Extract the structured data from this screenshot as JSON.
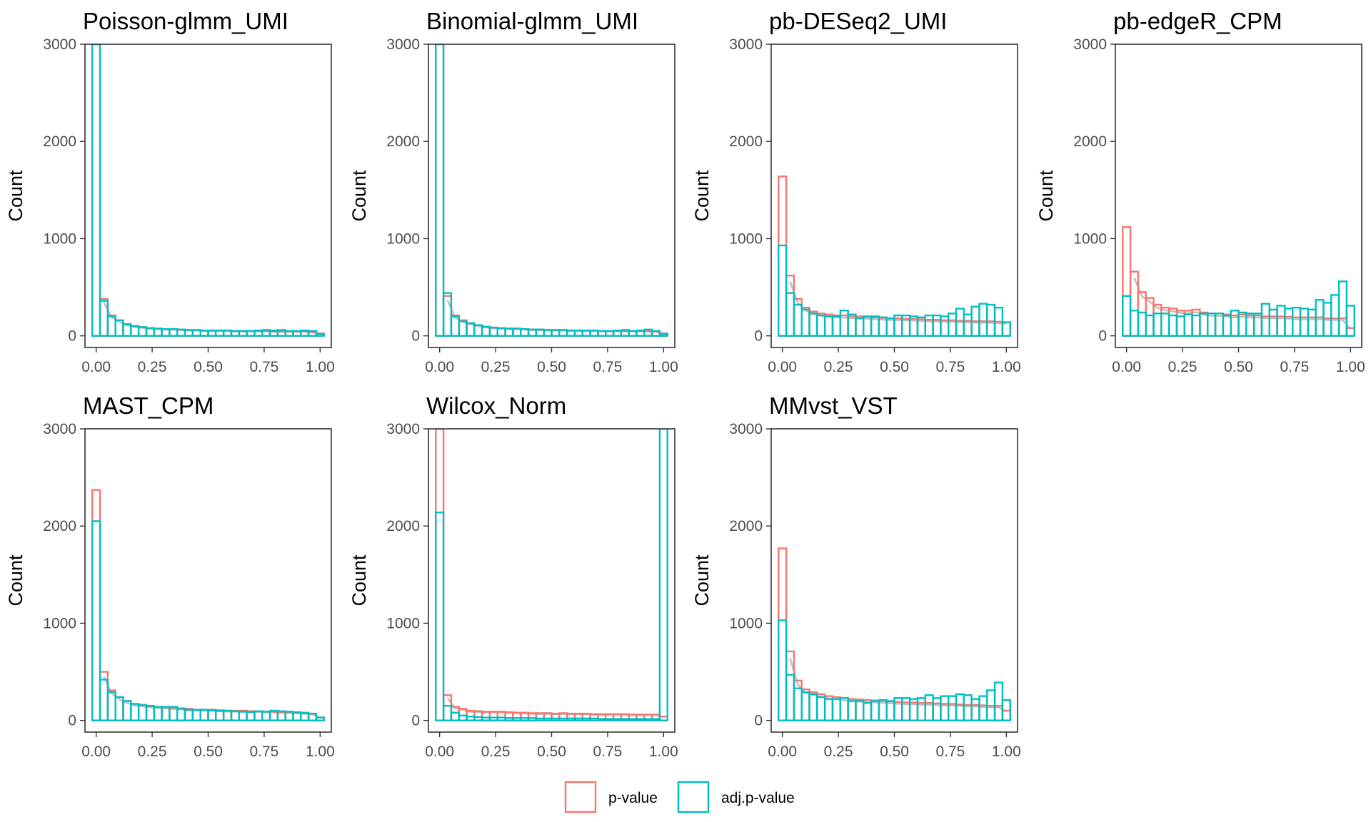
{
  "chart_data": {
    "type": "bar",
    "subtype": "histogram-facets",
    "x_ticks": [
      0,
      0.25,
      0.5,
      0.75,
      1
    ],
    "x_tick_labels": [
      "0.00",
      "0.25",
      "0.50",
      "0.75",
      "1.00"
    ],
    "xlim": [
      -0.05,
      1.05
    ],
    "y_ticks": [
      0,
      1000,
      2000,
      3000
    ],
    "y_tick_labels": [
      "0",
      "1000",
      "2000",
      "3000"
    ],
    "ylim": [
      -120,
      3000
    ],
    "ylabel": "Count",
    "bin_width": 0.0345,
    "bin_centers": [
      0,
      0.0345,
      0.069,
      0.1034,
      0.1379,
      0.1724,
      0.2069,
      0.2414,
      0.2759,
      0.3103,
      0.3448,
      0.3793,
      0.4138,
      0.4483,
      0.4828,
      0.5172,
      0.5517,
      0.5862,
      0.6207,
      0.6552,
      0.6897,
      0.7241,
      0.7586,
      0.7931,
      0.8276,
      0.8621,
      0.8966,
      0.931,
      0.9655,
      1
    ],
    "colors": {
      "p": "#F8766D",
      "adj": "#00BFC4",
      "reference": "#BDBDBD"
    },
    "legend": {
      "position": "bottom",
      "entries": [
        {
          "key": "p",
          "label": "p-value"
        },
        {
          "key": "adj",
          "label": "adj.p-value"
        }
      ]
    },
    "panels": [
      {
        "title": "Poisson-glmm_UMI",
        "p": [
          3400,
          380,
          210,
          160,
          120,
          100,
          90,
          80,
          75,
          70,
          70,
          65,
          60,
          60,
          55,
          55,
          55,
          55,
          50,
          50,
          50,
          50,
          50,
          45,
          45,
          45,
          45,
          45,
          40,
          25
        ],
        "adj": [
          3500,
          360,
          200,
          160,
          120,
          100,
          90,
          80,
          75,
          70,
          70,
          65,
          60,
          60,
          55,
          55,
          55,
          55,
          50,
          50,
          50,
          55,
          60,
          55,
          60,
          50,
          50,
          55,
          50,
          20
        ]
      },
      {
        "title": "Binomial-glmm_UMI",
        "p": [
          3400,
          410,
          210,
          160,
          130,
          110,
          95,
          85,
          80,
          75,
          75,
          70,
          65,
          65,
          60,
          60,
          60,
          55,
          55,
          55,
          55,
          50,
          50,
          50,
          50,
          50,
          50,
          50,
          45,
          25
        ],
        "adj": [
          3500,
          440,
          200,
          150,
          130,
          110,
          95,
          85,
          80,
          75,
          75,
          70,
          65,
          65,
          60,
          60,
          60,
          55,
          55,
          55,
          55,
          50,
          50,
          55,
          60,
          50,
          55,
          65,
          50,
          20
        ]
      },
      {
        "title": "pb-DESeq2_UMI",
        "p": [
          1640,
          620,
          380,
          290,
          250,
          230,
          220,
          210,
          210,
          200,
          200,
          195,
          190,
          185,
          180,
          180,
          175,
          175,
          170,
          165,
          165,
          160,
          160,
          155,
          155,
          150,
          150,
          150,
          145,
          140
        ],
        "adj": [
          930,
          440,
          320,
          270,
          230,
          210,
          200,
          200,
          260,
          220,
          180,
          200,
          200,
          190,
          180,
          210,
          210,
          200,
          190,
          210,
          210,
          200,
          230,
          280,
          220,
          300,
          330,
          320,
          290,
          140
        ]
      },
      {
        "title": "pb-edgeR_CPM",
        "p": [
          1120,
          660,
          450,
          390,
          320,
          290,
          280,
          260,
          260,
          270,
          240,
          230,
          230,
          220,
          210,
          220,
          210,
          210,
          200,
          200,
          200,
          195,
          190,
          190,
          190,
          190,
          180,
          180,
          180,
          80
        ],
        "adj": [
          410,
          260,
          240,
          210,
          230,
          230,
          210,
          200,
          220,
          210,
          230,
          230,
          230,
          210,
          260,
          240,
          230,
          230,
          330,
          270,
          310,
          280,
          290,
          280,
          270,
          370,
          340,
          420,
          560,
          310
        ]
      },
      {
        "title": "MAST_CPM",
        "p": [
          2370,
          500,
          310,
          240,
          200,
          170,
          160,
          150,
          140,
          135,
          130,
          125,
          120,
          110,
          110,
          110,
          105,
          100,
          100,
          100,
          95,
          95,
          90,
          90,
          85,
          85,
          80,
          75,
          70,
          30
        ],
        "adj": [
          2050,
          420,
          290,
          240,
          200,
          170,
          160,
          150,
          140,
          140,
          140,
          120,
          110,
          110,
          110,
          105,
          100,
          100,
          95,
          90,
          85,
          95,
          90,
          100,
          95,
          90,
          85,
          80,
          70,
          30
        ]
      },
      {
        "title": "Wilcox_Norm",
        "p": [
          3400,
          260,
          140,
          120,
          100,
          95,
          90,
          90,
          90,
          85,
          80,
          80,
          75,
          75,
          75,
          70,
          75,
          70,
          70,
          70,
          65,
          65,
          65,
          65,
          65,
          60,
          60,
          60,
          60,
          40
        ],
        "adj": [
          2140,
          150,
          80,
          50,
          40,
          35,
          30,
          30,
          30,
          25,
          25,
          25,
          25,
          20,
          20,
          20,
          20,
          20,
          20,
          20,
          20,
          15,
          15,
          15,
          15,
          15,
          15,
          15,
          15,
          3500
        ]
      },
      {
        "title": "MMvst_VST",
        "p": [
          1770,
          710,
          410,
          320,
          290,
          270,
          250,
          240,
          230,
          220,
          215,
          210,
          205,
          200,
          195,
          190,
          185,
          185,
          180,
          180,
          175,
          170,
          170,
          165,
          160,
          160,
          155,
          150,
          150,
          100
        ],
        "adj": [
          1030,
          470,
          330,
          290,
          270,
          240,
          220,
          220,
          230,
          200,
          200,
          180,
          200,
          210,
          200,
          230,
          230,
          220,
          230,
          260,
          230,
          250,
          250,
          270,
          260,
          220,
          250,
          310,
          390,
          210
        ]
      }
    ]
  }
}
